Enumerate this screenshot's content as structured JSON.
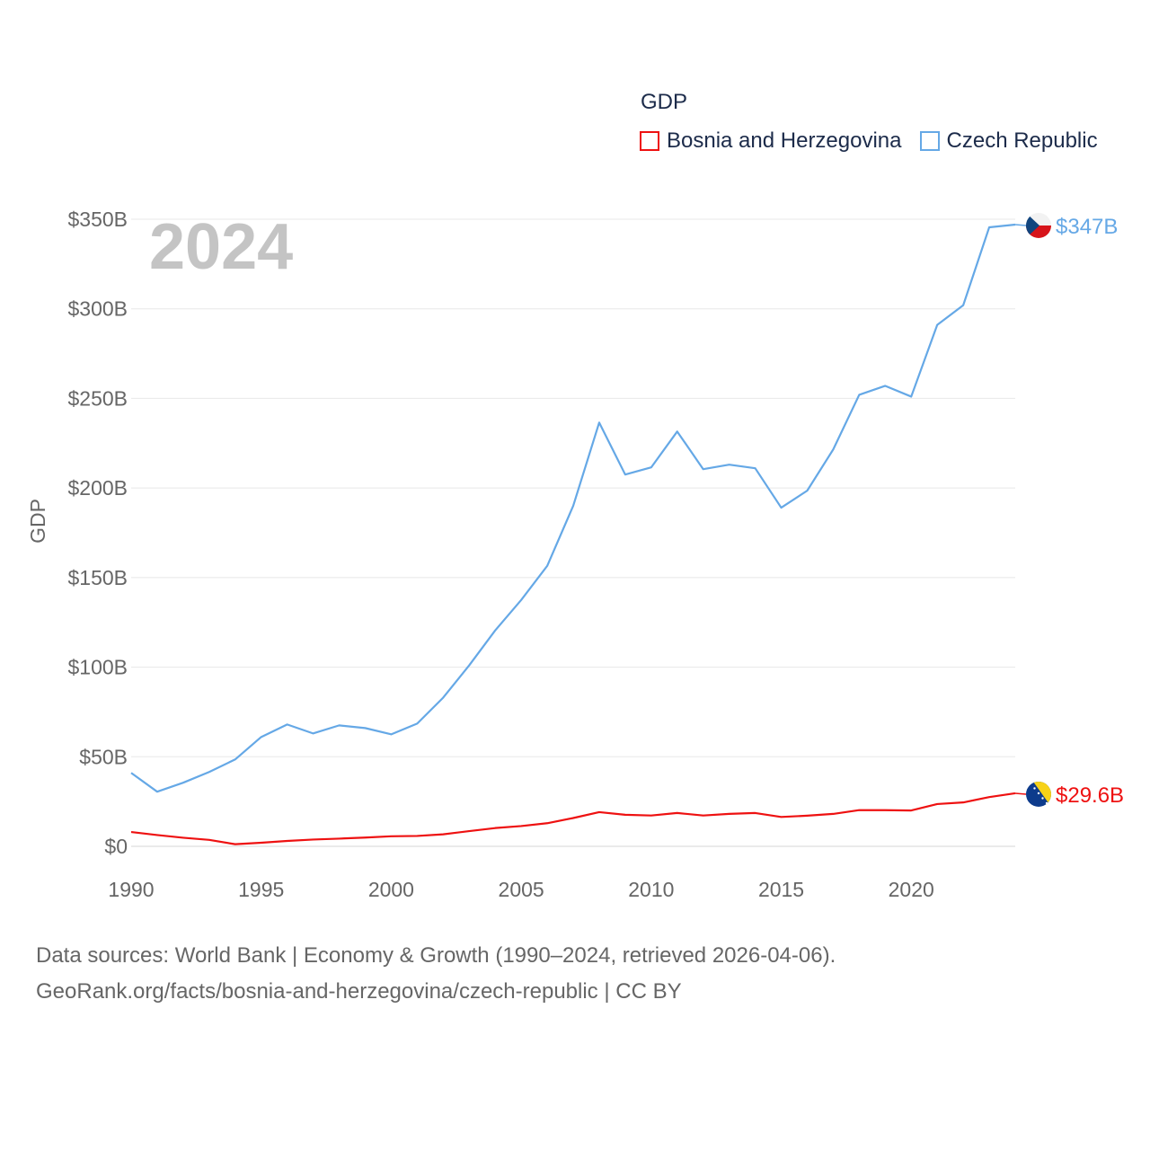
{
  "legend": {
    "title": "GDP",
    "items": [
      {
        "name": "Bosnia and Herzegovina",
        "color": "#ee1111"
      },
      {
        "name": "Czech Republic",
        "color": "#65a8e6"
      }
    ]
  },
  "year_label": "2024",
  "source": {
    "line1": "Data sources: World Bank | Economy & Growth (1990–2024, retrieved 2026-04-06).",
    "line2": "GeoRank.org/facts/bosnia-and-herzegovina/czech-republic | CC BY"
  },
  "chart_data": {
    "type": "line",
    "ylabel": "GDP",
    "xlabel": "",
    "xlim": [
      1990,
      2024
    ],
    "ylim": [
      0,
      350
    ],
    "x_ticks": [
      1990,
      1995,
      2000,
      2005,
      2010,
      2015,
      2020
    ],
    "y_ticks": [
      {
        "value": 0,
        "label": "$0"
      },
      {
        "value": 50,
        "label": "$50B"
      },
      {
        "value": 100,
        "label": "$100B"
      },
      {
        "value": 150,
        "label": "$150B"
      },
      {
        "value": 200,
        "label": "$200B"
      },
      {
        "value": 250,
        "label": "$250B"
      },
      {
        "value": 300,
        "label": "$300B"
      },
      {
        "value": 350,
        "label": "$350B"
      }
    ],
    "x": [
      1990,
      1991,
      1992,
      1993,
      1994,
      1995,
      1996,
      1997,
      1998,
      1999,
      2000,
      2001,
      2002,
      2003,
      2004,
      2005,
      2006,
      2007,
      2008,
      2009,
      2010,
      2011,
      2012,
      2013,
      2014,
      2015,
      2016,
      2017,
      2018,
      2019,
      2020,
      2021,
      2022,
      2023,
      2024
    ],
    "series": [
      {
        "name": "Bosnia and Herzegovina",
        "color": "#ee1111",
        "end_label": "$29.6B",
        "flag": "bosnia",
        "values": [
          8.0,
          6.3,
          4.8,
          3.6,
          1.2,
          2.0,
          3.0,
          3.8,
          4.3,
          4.9,
          5.6,
          5.8,
          6.7,
          8.5,
          10.2,
          11.3,
          12.9,
          15.8,
          19.1,
          17.6,
          17.2,
          18.6,
          17.2,
          18.1,
          18.6,
          16.4,
          17.1,
          18.1,
          20.2,
          20.2,
          20.0,
          23.6,
          24.5,
          27.5,
          29.6
        ]
      },
      {
        "name": "Czech Republic",
        "color": "#65a8e6",
        "end_label": "$347B",
        "flag": "czech",
        "values": [
          41,
          30.5,
          35.5,
          41.5,
          48.5,
          61,
          68,
          63,
          67.5,
          66,
          62.5,
          68.5,
          83,
          101,
          120.5,
          137.5,
          156.5,
          190,
          236.5,
          207.5,
          211.5,
          231.5,
          210.5,
          213,
          211,
          189,
          198.5,
          221.5,
          252,
          257,
          251,
          291,
          302,
          345.5,
          347
        ]
      }
    ]
  }
}
